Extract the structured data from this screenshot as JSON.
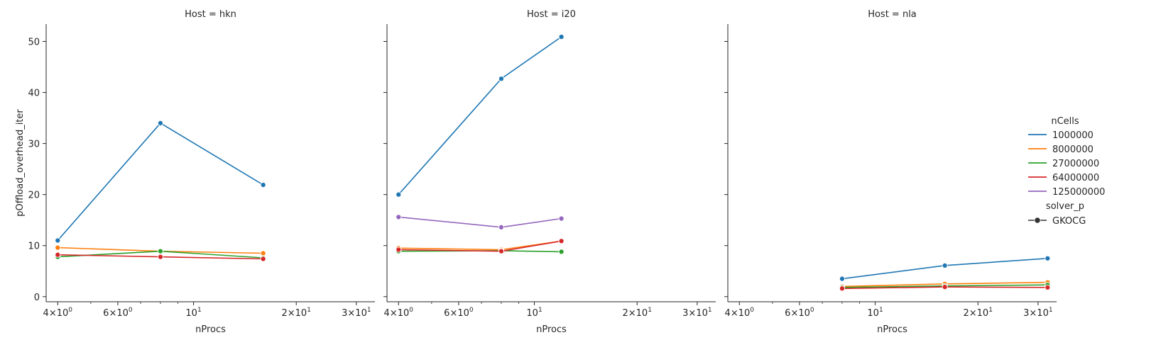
{
  "chart_data": {
    "type": "line",
    "facet_var": "Host",
    "xscale": "log",
    "xlabel": "nProcs",
    "ylabel": "pOffload_overhead_iter",
    "ylim": [
      -1,
      53.4
    ],
    "xlim": [
      3.7,
      34
    ],
    "y_ticks": [
      0,
      10,
      20,
      30,
      40,
      50
    ],
    "y_tick_labels": [
      "0",
      "10",
      "20",
      "30",
      "40",
      "50"
    ],
    "x_ticks": [
      4,
      6,
      10,
      20,
      30
    ],
    "x_tick_labels": [
      {
        "base": "4×10",
        "exp": "0"
      },
      {
        "base": "6×10",
        "exp": "0"
      },
      {
        "base": "10",
        "exp": "1"
      },
      {
        "base": "2×10",
        "exp": "1"
      },
      {
        "base": "3×10",
        "exp": "1"
      }
    ],
    "legend": {
      "placement": "right",
      "hue_title": "nCells",
      "style_title": "solver_p",
      "style_entries": [
        "GKOCG"
      ]
    },
    "hue": [
      {
        "name": "1000000",
        "color": "#1f77b4"
      },
      {
        "name": "8000000",
        "color": "#ff7f0e"
      },
      {
        "name": "27000000",
        "color": "#2ca02c"
      },
      {
        "name": "64000000",
        "color": "#d62728"
      },
      {
        "name": "125000000",
        "color": "#9467bd"
      }
    ],
    "panels": [
      {
        "title": "Host = hkn",
        "series": [
          {
            "name": "1000000",
            "x": [
              4,
              8,
              16
            ],
            "y": [
              11.0,
              34.0,
              21.9
            ]
          },
          {
            "name": "8000000",
            "x": [
              4,
              8,
              16
            ],
            "y": [
              9.6,
              8.9,
              8.5
            ]
          },
          {
            "name": "27000000",
            "x": [
              4,
              8,
              16
            ],
            "y": [
              7.8,
              8.9,
              7.6
            ]
          },
          {
            "name": "64000000",
            "x": [
              4,
              8,
              16
            ],
            "y": [
              8.2,
              7.8,
              7.4
            ]
          }
        ]
      },
      {
        "title": "Host = i20",
        "series": [
          {
            "name": "1000000",
            "x": [
              4,
              8,
              12
            ],
            "y": [
              20.0,
              42.7,
              50.9
            ]
          },
          {
            "name": "125000000",
            "x": [
              4,
              8,
              12
            ],
            "y": [
              15.6,
              13.6,
              15.3
            ]
          },
          {
            "name": "8000000",
            "x": [
              4,
              8,
              12
            ],
            "y": [
              9.5,
              9.2,
              10.9
            ]
          },
          {
            "name": "27000000",
            "x": [
              4,
              8,
              12
            ],
            "y": [
              8.9,
              9.0,
              8.8
            ]
          },
          {
            "name": "64000000",
            "x": [
              4,
              8,
              12
            ],
            "y": [
              9.2,
              8.9,
              10.9
            ]
          }
        ]
      },
      {
        "title": "Host = nla",
        "series": [
          {
            "name": "1000000",
            "x": [
              8,
              16,
              32
            ],
            "y": [
              3.5,
              6.1,
              7.5
            ]
          },
          {
            "name": "8000000",
            "x": [
              8,
              16,
              32
            ],
            "y": [
              2.0,
              2.5,
              2.8
            ]
          },
          {
            "name": "27000000",
            "x": [
              8,
              16,
              32
            ],
            "y": [
              1.8,
              2.1,
              2.3
            ]
          },
          {
            "name": "64000000",
            "x": [
              8,
              16,
              32
            ],
            "y": [
              1.6,
              1.9,
              1.8
            ]
          }
        ]
      }
    ]
  }
}
